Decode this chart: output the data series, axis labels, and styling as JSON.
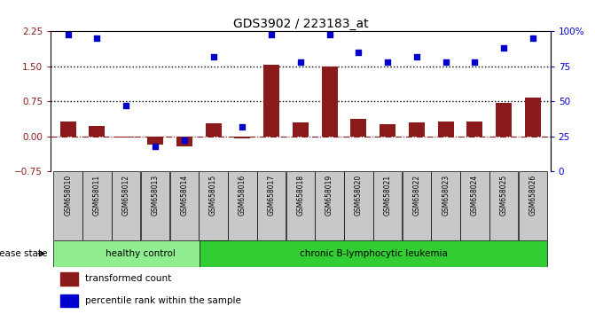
{
  "title": "GDS3902 / 223183_at",
  "samples": [
    "GSM658010",
    "GSM658011",
    "GSM658012",
    "GSM658013",
    "GSM658014",
    "GSM658015",
    "GSM658016",
    "GSM658017",
    "GSM658018",
    "GSM658019",
    "GSM658020",
    "GSM658021",
    "GSM658022",
    "GSM658023",
    "GSM658024",
    "GSM658025",
    "GSM658026"
  ],
  "transformed_count": [
    0.32,
    0.22,
    -0.02,
    -0.18,
    -0.22,
    0.28,
    -0.04,
    1.53,
    0.3,
    1.5,
    0.38,
    0.25,
    0.3,
    0.32,
    0.32,
    0.72,
    0.82
  ],
  "percentile_rank": [
    98,
    95,
    47,
    18,
    22,
    82,
    32,
    98,
    78,
    98,
    85,
    78,
    82,
    78,
    78,
    88,
    95
  ],
  "healthy_count": 5,
  "leukemia_count": 12,
  "healthy_label": "healthy control",
  "leukemia_label": "chronic B-lymphocytic leukemia",
  "disease_state_label": "disease state",
  "legend_bar": "transformed count",
  "legend_dot": "percentile rank within the sample",
  "ylim_left": [
    -0.75,
    2.25
  ],
  "ylim_right": [
    0,
    100
  ],
  "yticks_left": [
    -0.75,
    0.0,
    0.75,
    1.5,
    2.25
  ],
  "yticks_right": [
    0,
    25,
    50,
    75,
    100
  ],
  "hline_zero": 0.0,
  "hline_dotted1": 0.75,
  "hline_dotted2": 1.5,
  "bar_color": "#8B1A1A",
  "dot_color": "#0000CC",
  "healthy_bg": "#90EE90",
  "leukemia_bg": "#32CD32",
  "xlabel_bg": "#C8C8C8",
  "fig_width": 6.71,
  "fig_height": 3.54
}
